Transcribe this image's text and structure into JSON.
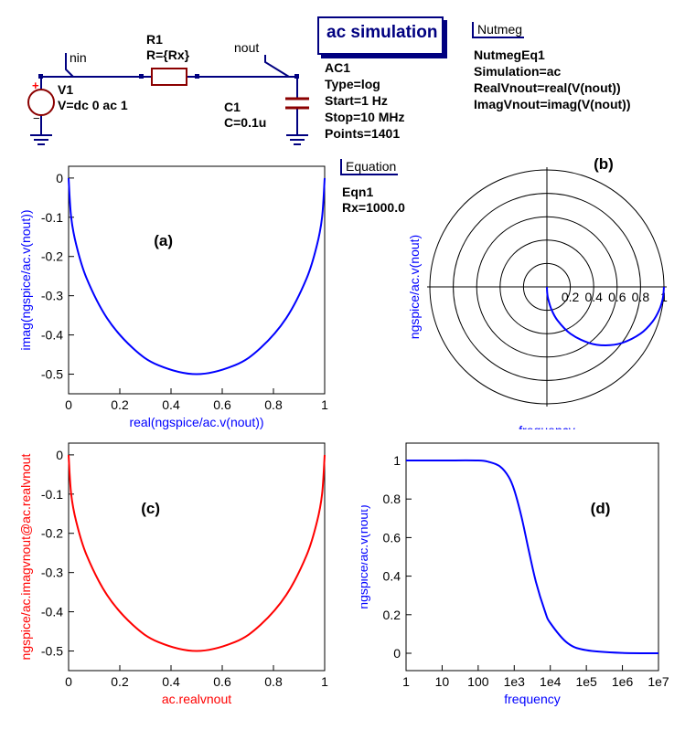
{
  "schematic": {
    "node_nin": "nin",
    "node_nout": "nout",
    "r1_name": "R1",
    "r1_value": "R={Rx}",
    "v1_name": "V1",
    "v1_value": "V=dc 0 ac 1",
    "c1_name": "C1",
    "c1_value": "C=0.1u",
    "v1_plus": "+",
    "v1_minus": "−"
  },
  "simulation": {
    "title": "ac simulation",
    "lines": [
      "AC1",
      "Type=log",
      "Start=1 Hz",
      "Stop=10 MHz",
      "Points=1401"
    ]
  },
  "nutmeg": {
    "tag": "Nutmeg",
    "lines": [
      "NutmegEq1",
      "Simulation=ac",
      "RealVnout=real(V(nout))",
      "ImagVnout=imag(V(nout))"
    ]
  },
  "equation": {
    "tag": "Equation",
    "lines": [
      "Eqn1",
      "Rx=1000.0"
    ]
  },
  "colors": {
    "blue": "#0000ff",
    "red": "#ff0000",
    "wire": "#000080",
    "component": "#8b0000"
  },
  "chart_data": [
    {
      "id": "a",
      "type": "line",
      "label": "(a)",
      "xlabel": "real(ngspice/ac.v(nout))",
      "ylabel": "imag(ngspice/ac.v(nout))",
      "xlim": [
        0,
        1
      ],
      "ylim": [
        -0.55,
        0.03
      ],
      "xticks": [
        "0",
        "0.2",
        "0.4",
        "0.6",
        "0.8",
        "1"
      ],
      "yticks": [
        "0",
        "-0.1",
        "-0.2",
        "-0.3",
        "-0.4",
        "-0.5"
      ],
      "series": [
        {
          "color": "#0000ff",
          "x": [
            0,
            0.01,
            0.03,
            0.07,
            0.15,
            0.25,
            0.35,
            0.5,
            0.65,
            0.75,
            0.85,
            0.93,
            0.97,
            0.99,
            1
          ],
          "y": [
            0,
            -0.0995,
            -0.1706,
            -0.2551,
            -0.3571,
            -0.433,
            -0.477,
            -0.5,
            -0.477,
            -0.433,
            -0.3571,
            -0.2551,
            -0.1706,
            -0.0995,
            0
          ]
        }
      ]
    },
    {
      "id": "b",
      "type": "polar",
      "label": "(b)",
      "xlabel": "frequency",
      "ylabel": "ngspice/ac.v(nout)",
      "rmax": 1,
      "rticks": [
        "0.2",
        "0.4",
        "0.6",
        "0.8",
        "1"
      ],
      "series": [
        {
          "color": "#0000ff",
          "magnitude": [
            1,
            0.995,
            0.98,
            0.95,
            0.894,
            0.8,
            0.707,
            0.6,
            0.447,
            0.3,
            0.196,
            0.1,
            0.05,
            0
          ],
          "phase_deg": [
            0,
            -5.7,
            -11.5,
            -18.2,
            -26.6,
            -36.9,
            -45,
            -53.1,
            -63.4,
            -72.5,
            -78.7,
            -84.3,
            -87.1,
            -90
          ]
        }
      ]
    },
    {
      "id": "c",
      "type": "line",
      "label": "(c)",
      "xlabel": "ac.realvnout",
      "ylabel": "ngspice/ac.imagvnout@ac.realvnout",
      "xlim": [
        0,
        1
      ],
      "ylim": [
        -0.55,
        0.03
      ],
      "xticks": [
        "0",
        "0.2",
        "0.4",
        "0.6",
        "0.8",
        "1"
      ],
      "yticks": [
        "0",
        "-0.1",
        "-0.2",
        "-0.3",
        "-0.4",
        "-0.5"
      ],
      "series": [
        {
          "color": "#ff0000",
          "x": [
            0,
            0.01,
            0.03,
            0.07,
            0.15,
            0.25,
            0.35,
            0.5,
            0.65,
            0.75,
            0.85,
            0.93,
            0.97,
            0.99,
            1
          ],
          "y": [
            0,
            -0.0995,
            -0.1706,
            -0.2551,
            -0.3571,
            -0.433,
            -0.477,
            -0.5,
            -0.477,
            -0.433,
            -0.3571,
            -0.2551,
            -0.1706,
            -0.0995,
            0
          ]
        }
      ]
    },
    {
      "id": "d",
      "type": "line",
      "label": "(d)",
      "xscale": "log",
      "xlabel": "frequency",
      "ylabel": "ngspice/ac.v(nout)",
      "xlim": [
        1,
        10000000
      ],
      "ylim": [
        -0.09,
        1.09
      ],
      "xticks": [
        "1",
        "10",
        "100",
        "1e3",
        "1e4",
        "1e5",
        "1e6",
        "1e7"
      ],
      "yticks": [
        "1",
        "0.8",
        "0.6",
        "0.4",
        "0.2",
        "0"
      ],
      "series": [
        {
          "color": "#0000ff",
          "x": [
            1,
            10,
            100,
            200,
            400,
            700,
            1000,
            1592,
            2500,
            4000,
            7000,
            10000,
            30000,
            100000,
            1000000,
            10000000
          ],
          "y": [
            1,
            1,
            0.9998,
            0.9923,
            0.9694,
            0.9153,
            0.8467,
            0.707,
            0.5372,
            0.3698,
            0.2216,
            0.157,
            0.053,
            0.0159,
            0.0016,
            0.0002
          ]
        }
      ]
    }
  ]
}
